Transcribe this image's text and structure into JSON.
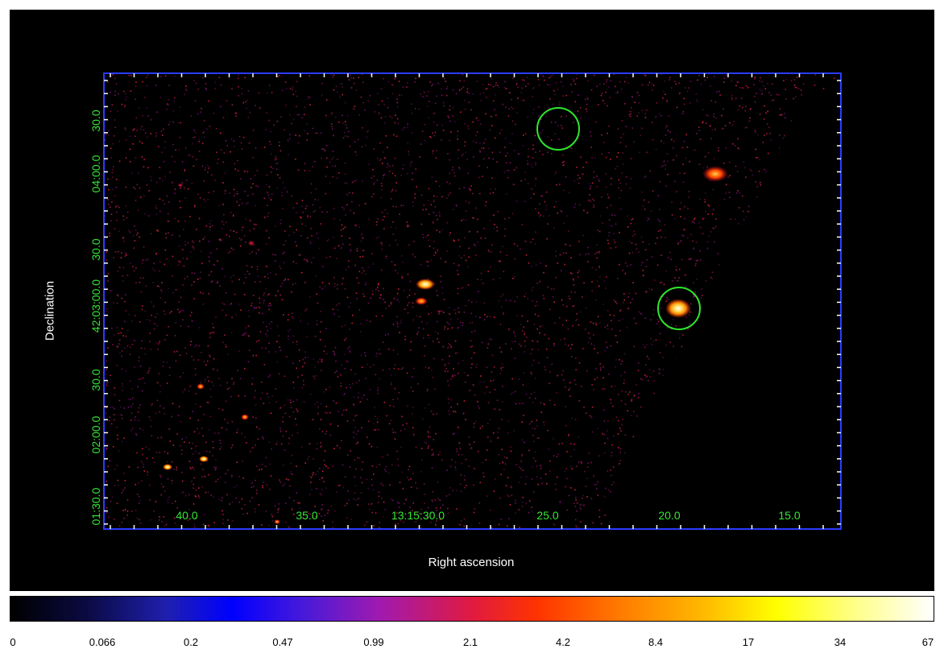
{
  "axes": {
    "ylabel": "Declination",
    "xlabel": "Right ascension",
    "x_ticks": [
      "40.0",
      "35.0",
      "13:15:30.0",
      "25.0",
      "20.0",
      "15.0"
    ],
    "y_ticks": [
      "30.0",
      "04:00.0",
      "30.0",
      "42:03:00.0",
      "30.0",
      "02:00.0",
      "01:30.0"
    ]
  },
  "colorbar": {
    "labels": [
      "0",
      "0.066",
      "0.2",
      "0.47",
      "0.99",
      "2.1",
      "4.2",
      "8.4",
      "17",
      "34",
      "67"
    ]
  },
  "colors": {
    "background": "#000000",
    "frame": "#2a3cff",
    "label_green": "#33e633",
    "region_circle": "#2ee62e"
  },
  "regions": [
    {
      "shape": "circle",
      "label": ""
    },
    {
      "shape": "circle",
      "label": ""
    }
  ]
}
